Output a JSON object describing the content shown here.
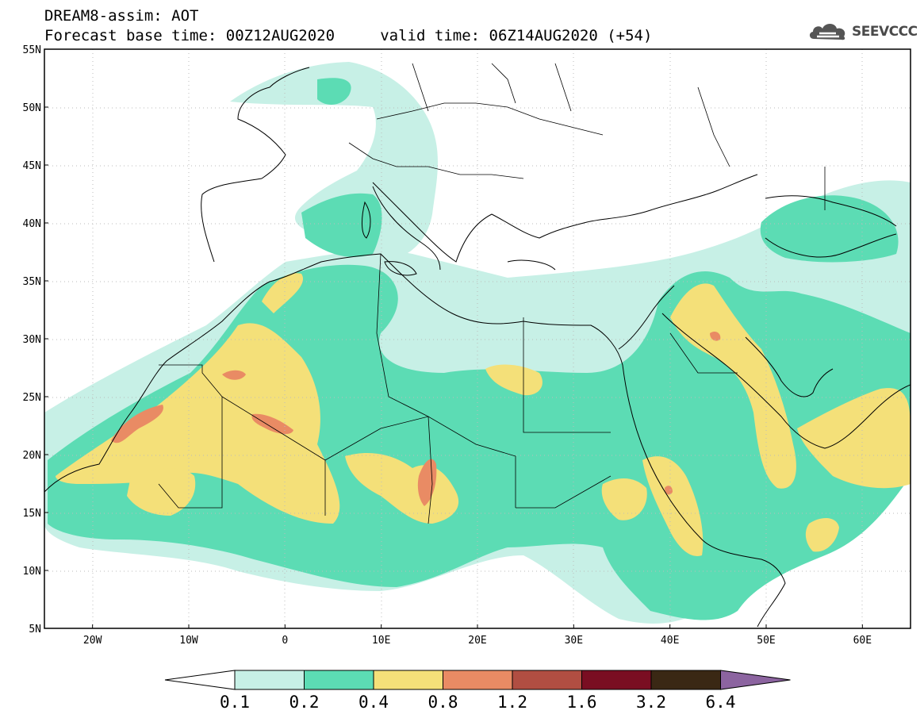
{
  "title": {
    "line1": "DREAM8-assim: AOT",
    "line2": "Forecast base time: 00Z12AUG2020     valid time: 06Z14AUG2020 (+54)"
  },
  "logo": {
    "text": "SEEVCCC",
    "icon": "cloud-icon"
  },
  "map": {
    "lon_range": [
      -25,
      65
    ],
    "lat_range": [
      5,
      55
    ],
    "lat_labels": [
      "55N",
      "50N",
      "45N",
      "40N",
      "35N",
      "30N",
      "25N",
      "20N",
      "15N",
      "10N",
      "5N"
    ],
    "lat_values": [
      55,
      50,
      45,
      40,
      35,
      30,
      25,
      20,
      15,
      10,
      5
    ],
    "lon_labels": [
      "20W",
      "10W",
      "0",
      "10E",
      "20E",
      "30E",
      "40E",
      "50E",
      "60E"
    ],
    "lon_values": [
      -20,
      -10,
      0,
      10,
      20,
      30,
      40,
      50,
      60
    ],
    "grid": "dotted",
    "variable": "AOT"
  },
  "colorbar": {
    "labels": [
      "0.1",
      "0.2",
      "0.4",
      "0.8",
      "1.2",
      "1.6",
      "3.2",
      "6.4"
    ],
    "colors": [
      "#c7f0e6",
      "#5cdcb4",
      "#f4e079",
      "#e98b64",
      "#b14e42",
      "#7a0e22",
      "#3a2814"
    ],
    "under_color": "#ffffff",
    "over_color": "#8c64a0"
  }
}
